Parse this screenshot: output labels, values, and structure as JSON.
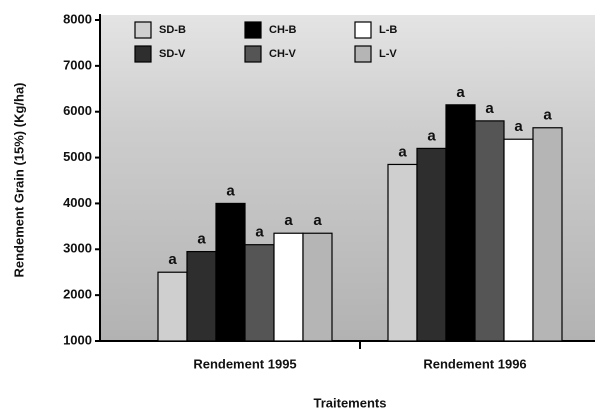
{
  "chart_data": {
    "type": "bar",
    "y_label": "Rendement Grain (15%) (Kg/ha)",
    "x_label": "Traitements",
    "categories": [
      "Rendement 1995",
      "Rendement 1996"
    ],
    "series": [
      {
        "name": "SD-B",
        "color": "#cfcfcf",
        "values": [
          2500,
          4850
        ],
        "letters": [
          "a",
          "a"
        ]
      },
      {
        "name": "SD-V",
        "color": "#2e2e2e",
        "values": [
          2950,
          5200
        ],
        "letters": [
          "a",
          "a"
        ]
      },
      {
        "name": "CH-B",
        "color": "#000000",
        "values": [
          4000,
          6150
        ],
        "letters": [
          "a",
          "a"
        ]
      },
      {
        "name": "CH-V",
        "color": "#555555",
        "values": [
          3100,
          5800
        ],
        "letters": [
          "a",
          "a"
        ]
      },
      {
        "name": "L-B",
        "color": "#ffffff",
        "values": [
          3350,
          5400
        ],
        "letters": [
          "a",
          "a"
        ]
      },
      {
        "name": "L-V",
        "color": "#b5b5b5",
        "values": [
          3350,
          5650
        ],
        "letters": [
          "a",
          "a"
        ]
      }
    ],
    "ylim": [
      1000,
      8000
    ],
    "yticks": [
      1000,
      2000,
      3000,
      4000,
      5000,
      6000,
      7000,
      8000
    ],
    "legend": "top-left"
  }
}
